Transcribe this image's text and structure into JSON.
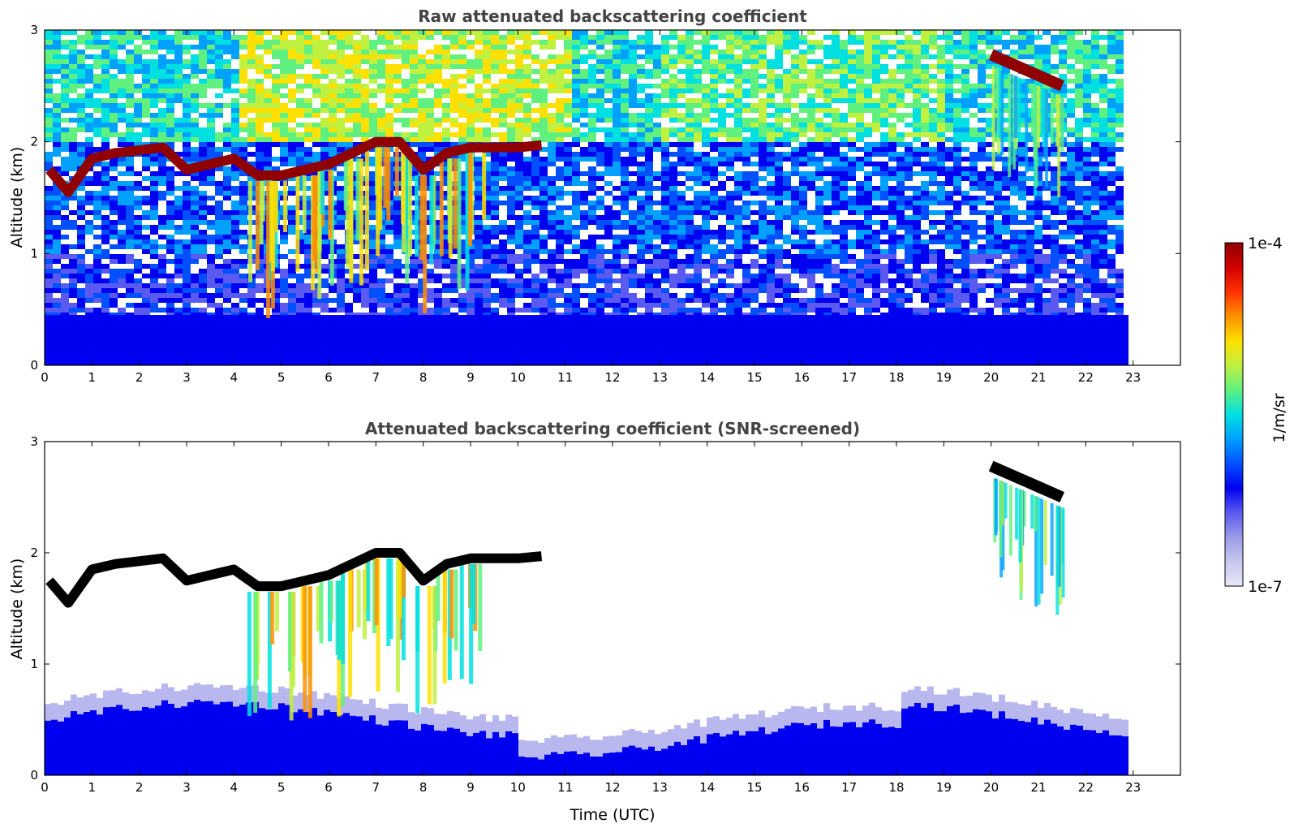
{
  "chart_data": [
    {
      "type": "heatmap",
      "title": "Raw attenuated backscattering coefficient",
      "xlabel": "",
      "ylabel": "Altitude (km)",
      "xlim": [
        0,
        24
      ],
      "ylim": [
        0,
        3
      ],
      "x_ticks": [
        "0",
        "1",
        "2",
        "3",
        "4",
        "5",
        "6",
        "7",
        "8",
        "9",
        "10",
        "11",
        "12",
        "13",
        "14",
        "15",
        "16",
        "17",
        "18",
        "19",
        "20",
        "21",
        "22",
        "23"
      ],
      "y_ticks": [
        "0",
        "1",
        "2",
        "3"
      ],
      "data_extent_hours": [
        0,
        22.8
      ],
      "features": {
        "near_surface_layer_top_km": 0.45,
        "cloud_base_km": [
          [
            0.1,
            1.75
          ],
          [
            0.5,
            1.55
          ],
          [
            1.0,
            1.85
          ],
          [
            1.5,
            1.9
          ],
          [
            2.5,
            1.95
          ],
          [
            3.0,
            1.75
          ],
          [
            3.5,
            1.8
          ],
          [
            4.0,
            1.85
          ],
          [
            4.5,
            1.7
          ],
          [
            5.0,
            1.7
          ],
          [
            5.5,
            1.75
          ],
          [
            6.0,
            1.8
          ],
          [
            6.5,
            1.9
          ],
          [
            7.0,
            2.0
          ],
          [
            7.5,
            2.0
          ],
          [
            8.0,
            1.75
          ],
          [
            8.5,
            1.9
          ],
          [
            9.0,
            1.95
          ],
          [
            9.5,
            1.95
          ],
          [
            10.0,
            1.95
          ],
          [
            10.5,
            1.97
          ]
        ],
        "upper_cloud_km": [
          [
            20.0,
            2.78
          ],
          [
            21.5,
            2.5
          ]
        ]
      }
    },
    {
      "type": "heatmap",
      "title": "Attenuated backscattering coefficient (SNR-screened)",
      "xlabel": "Time (UTC)",
      "ylabel": "Altitude (km)",
      "xlim": [
        0,
        24
      ],
      "ylim": [
        0,
        3
      ],
      "x_ticks": [
        "0",
        "1",
        "2",
        "3",
        "4",
        "5",
        "6",
        "7",
        "8",
        "9",
        "10",
        "11",
        "12",
        "13",
        "14",
        "15",
        "16",
        "17",
        "18",
        "19",
        "20",
        "21",
        "22",
        "23"
      ],
      "y_ticks": [
        "0",
        "1",
        "2",
        "3"
      ],
      "data_extent_hours": [
        0,
        22.8
      ],
      "features": {
        "near_surface_layer_top_km": 0.5,
        "cloud_base_km": [
          [
            0.1,
            1.75
          ],
          [
            0.5,
            1.55
          ],
          [
            1.0,
            1.85
          ],
          [
            1.5,
            1.9
          ],
          [
            2.5,
            1.95
          ],
          [
            3.0,
            1.75
          ],
          [
            3.5,
            1.8
          ],
          [
            4.0,
            1.85
          ],
          [
            4.5,
            1.7
          ],
          [
            5.0,
            1.7
          ],
          [
            5.5,
            1.75
          ],
          [
            6.0,
            1.8
          ],
          [
            6.5,
            1.9
          ],
          [
            7.0,
            2.0
          ],
          [
            7.5,
            2.0
          ],
          [
            8.0,
            1.75
          ],
          [
            8.5,
            1.9
          ],
          [
            9.0,
            1.95
          ],
          [
            9.5,
            1.95
          ],
          [
            10.0,
            1.95
          ],
          [
            10.5,
            1.97
          ]
        ],
        "upper_cloud_km": [
          [
            20.0,
            2.78
          ],
          [
            21.5,
            2.5
          ]
        ]
      }
    }
  ],
  "colorbar": {
    "label": "1/m/sr",
    "max_label": "1e-4",
    "min_label": "1e-7",
    "range": [
      1e-07,
      0.0001
    ],
    "scale": "log",
    "colormap": [
      "#e6e6f5",
      "#c8c8f0",
      "#9a9ae8",
      "#5a5af0",
      "#0000f0",
      "#0050ff",
      "#00a0ff",
      "#00e0e0",
      "#60f080",
      "#c0f040",
      "#ffe000",
      "#ff9000",
      "#ff3000",
      "#d00000",
      "#900000"
    ]
  }
}
